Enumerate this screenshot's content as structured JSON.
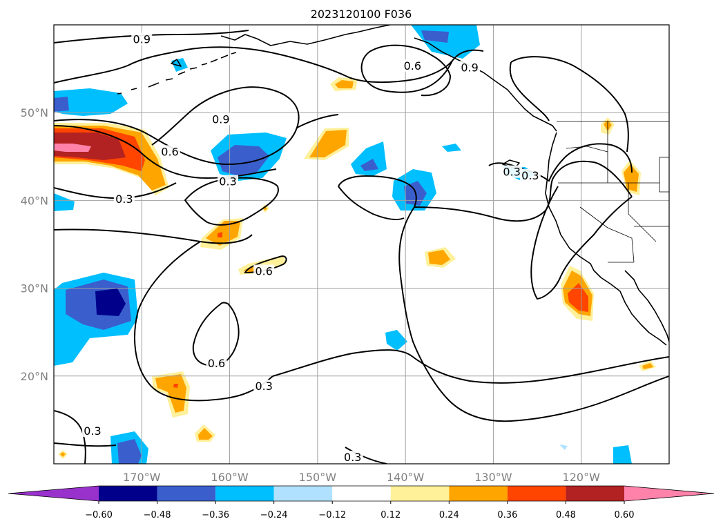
{
  "title": "2023120100 F036",
  "map": {
    "lon_range": [
      -180,
      -110
    ],
    "lat_range": [
      10,
      60
    ],
    "lon_ticks": [
      {
        "value": -170,
        "label": "170°W"
      },
      {
        "value": -160,
        "label": "160°W"
      },
      {
        "value": -150,
        "label": "150°W"
      },
      {
        "value": -140,
        "label": "140°W"
      },
      {
        "value": -130,
        "label": "130°W"
      },
      {
        "value": -120,
        "label": "120°W"
      }
    ],
    "lat_ticks": [
      {
        "value": 20,
        "label": "20°N"
      },
      {
        "value": 30,
        "label": "30°N"
      },
      {
        "value": 40,
        "label": "40°N"
      },
      {
        "value": 50,
        "label": "50°N"
      }
    ],
    "gridlines": true,
    "contour_labels": [
      {
        "text": "0.9",
        "lon": -170,
        "lat": 58.3
      },
      {
        "text": "0.9",
        "lon": -161,
        "lat": 49.2
      },
      {
        "text": "0.9",
        "lon": -132.7,
        "lat": 55.1
      },
      {
        "text": "0.6",
        "lon": -139.2,
        "lat": 55.3
      },
      {
        "text": "0.6",
        "lon": -166.8,
        "lat": 45.5
      },
      {
        "text": "0.3",
        "lon": -160.2,
        "lat": 42.1
      },
      {
        "text": "0.3",
        "lon": -172,
        "lat": 40.1
      },
      {
        "text": "0.6",
        "lon": -156.1,
        "lat": 31.9
      },
      {
        "text": "0.6",
        "lon": -161.5,
        "lat": 21.4
      },
      {
        "text": "0.3",
        "lon": -156.1,
        "lat": 18.8
      },
      {
        "text": "0.3",
        "lon": -175.6,
        "lat": 13.7
      },
      {
        "text": "0.3",
        "lon": -146,
        "lat": 10.7
      },
      {
        "text": "0.3",
        "lon": -127.9,
        "lat": 43.2
      },
      {
        "text": "0.3",
        "lon": -125.8,
        "lat": 42.8
      }
    ]
  },
  "colorbar": {
    "levels": [
      -0.6,
      -0.48,
      -0.36,
      -0.24,
      -0.12,
      0.12,
      0.24,
      0.36,
      0.48,
      0.6
    ],
    "tick_labels": [
      "−0.60",
      "−0.48",
      "−0.36",
      "−0.24",
      "−0.12",
      "0.12",
      "0.24",
      "0.36",
      "0.48",
      "0.60"
    ],
    "colors": [
      "#9932cc",
      "#00008b",
      "#3a5fcd",
      "#00bfff",
      "#b0e2ff",
      "#ffffff",
      "#fff09a",
      "#ffa500",
      "#ff4500",
      "#b22222",
      "#ff82ab"
    ],
    "extend": "both"
  }
}
